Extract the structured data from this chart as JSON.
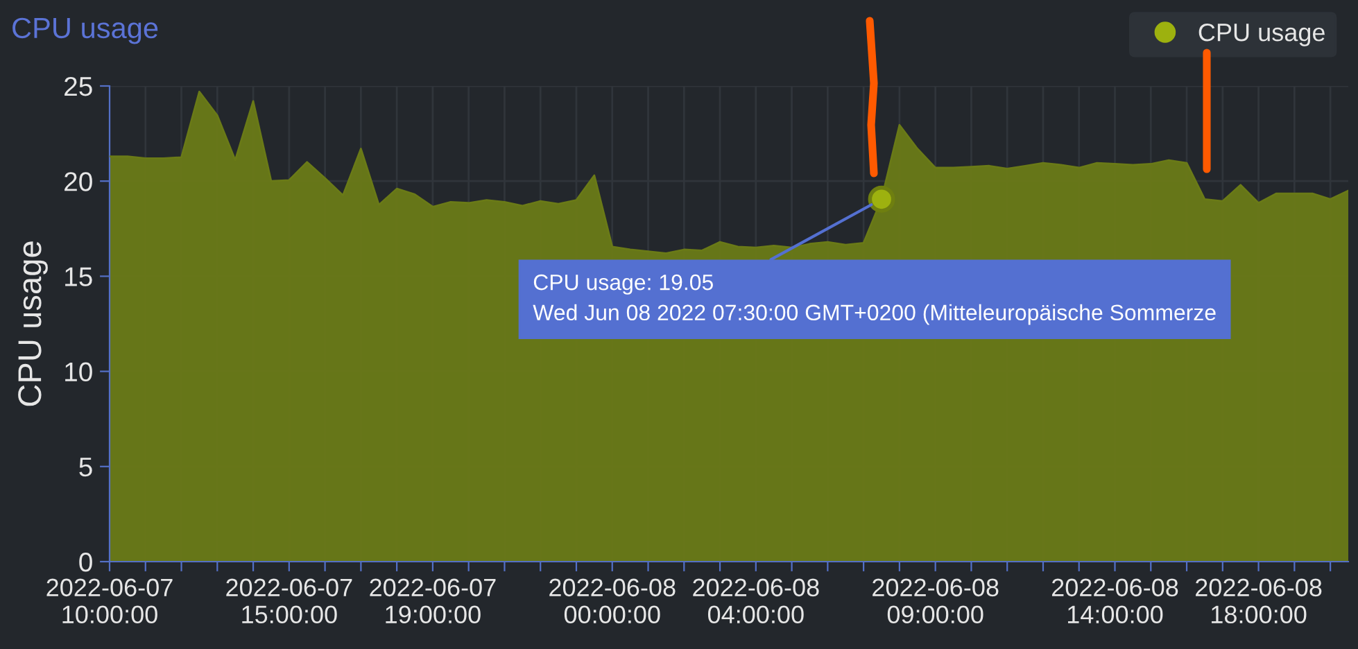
{
  "chart_data": {
    "type": "area",
    "title": "CPU usage",
    "ylabel": "CPU usage",
    "x": [
      "2022-06-07T10:00",
      "2022-06-07T10:30",
      "2022-06-07T11:00",
      "2022-06-07T11:30",
      "2022-06-07T12:00",
      "2022-06-07T12:30",
      "2022-06-07T13:00",
      "2022-06-07T13:30",
      "2022-06-07T14:00",
      "2022-06-07T14:30",
      "2022-06-07T15:00",
      "2022-06-07T15:30",
      "2022-06-07T16:00",
      "2022-06-07T16:30",
      "2022-06-07T17:00",
      "2022-06-07T17:30",
      "2022-06-07T18:00",
      "2022-06-07T18:30",
      "2022-06-07T19:00",
      "2022-06-07T19:30",
      "2022-06-07T20:00",
      "2022-06-07T20:30",
      "2022-06-07T21:00",
      "2022-06-07T21:30",
      "2022-06-07T22:00",
      "2022-06-07T22:30",
      "2022-06-07T23:00",
      "2022-06-07T23:30",
      "2022-06-08T00:00",
      "2022-06-08T00:30",
      "2022-06-08T01:00",
      "2022-06-08T01:30",
      "2022-06-08T02:00",
      "2022-06-08T02:30",
      "2022-06-08T03:00",
      "2022-06-08T03:30",
      "2022-06-08T04:00",
      "2022-06-08T04:30",
      "2022-06-08T05:00",
      "2022-06-08T05:30",
      "2022-06-08T06:00",
      "2022-06-08T06:30",
      "2022-06-08T07:00",
      "2022-06-08T07:30",
      "2022-06-08T08:00",
      "2022-06-08T08:30",
      "2022-06-08T09:00",
      "2022-06-08T09:30",
      "2022-06-08T10:00",
      "2022-06-08T10:30",
      "2022-06-08T11:00",
      "2022-06-08T11:30",
      "2022-06-08T12:00",
      "2022-06-08T12:30",
      "2022-06-08T13:00",
      "2022-06-08T13:30",
      "2022-06-08T14:00",
      "2022-06-08T14:30",
      "2022-06-08T15:00",
      "2022-06-08T15:30",
      "2022-06-08T16:00",
      "2022-06-08T16:30",
      "2022-06-08T17:00",
      "2022-06-08T17:30",
      "2022-06-08T18:00",
      "2022-06-08T18:30",
      "2022-06-08T19:00",
      "2022-06-08T19:30",
      "2022-06-08T20:00",
      "2022-06-08T20:30"
    ],
    "series": [
      {
        "name": "CPU usage",
        "color": "#6a7a17",
        "values": [
          21.3,
          21.3,
          21.2,
          21.2,
          21.25,
          24.7,
          23.45,
          21.1,
          24.2,
          20.0,
          20.05,
          21.0,
          20.15,
          19.25,
          21.7,
          18.75,
          19.6,
          19.3,
          18.65,
          18.9,
          18.85,
          19.0,
          18.9,
          18.7,
          18.95,
          18.8,
          19.0,
          20.3,
          16.55,
          16.4,
          16.3,
          16.2,
          16.4,
          16.35,
          16.8,
          16.55,
          16.5,
          16.6,
          16.5,
          16.7,
          16.8,
          16.65,
          16.75,
          19.05,
          22.95,
          21.7,
          20.7,
          20.7,
          20.75,
          20.8,
          20.65,
          20.8,
          20.95,
          20.85,
          20.7,
          20.95,
          20.9,
          20.85,
          20.9,
          21.1,
          20.95,
          19.05,
          18.95,
          19.8,
          18.85,
          19.35,
          19.35,
          19.35,
          19.05,
          19.5
        ]
      }
    ],
    "xlim": [
      "2022-06-07T10:00",
      "2022-06-08T20:30"
    ],
    "xticks": [
      {
        "value": "2022-06-07T10:00",
        "label": "2022-06-07\n10:00:00"
      },
      {
        "value": "2022-06-07T11:00",
        "label": null
      },
      {
        "value": "2022-06-07T12:00",
        "label": null
      },
      {
        "value": "2022-06-07T13:00",
        "label": null
      },
      {
        "value": "2022-06-07T14:00",
        "label": null
      },
      {
        "value": "2022-06-07T15:00",
        "label": "2022-06-07\n15:00:00"
      },
      {
        "value": "2022-06-07T16:00",
        "label": null
      },
      {
        "value": "2022-06-07T17:00",
        "label": null
      },
      {
        "value": "2022-06-07T18:00",
        "label": null
      },
      {
        "value": "2022-06-07T19:00",
        "label": "2022-06-07\n19:00:00"
      },
      {
        "value": "2022-06-07T20:00",
        "label": null
      },
      {
        "value": "2022-06-07T21:00",
        "label": null
      },
      {
        "value": "2022-06-07T22:00",
        "label": null
      },
      {
        "value": "2022-06-07T23:00",
        "label": null
      },
      {
        "value": "2022-06-08T00:00",
        "label": "2022-06-08\n00:00:00"
      },
      {
        "value": "2022-06-08T01:00",
        "label": null
      },
      {
        "value": "2022-06-08T02:00",
        "label": null
      },
      {
        "value": "2022-06-08T03:00",
        "label": null
      },
      {
        "value": "2022-06-08T04:00",
        "label": "2022-06-08\n04:00:00"
      },
      {
        "value": "2022-06-08T05:00",
        "label": null
      },
      {
        "value": "2022-06-08T06:00",
        "label": null
      },
      {
        "value": "2022-06-08T07:00",
        "label": null
      },
      {
        "value": "2022-06-08T08:00",
        "label": null
      },
      {
        "value": "2022-06-08T09:00",
        "label": "2022-06-08\n09:00:00"
      },
      {
        "value": "2022-06-08T10:00",
        "label": null
      },
      {
        "value": "2022-06-08T11:00",
        "label": null
      },
      {
        "value": "2022-06-08T12:00",
        "label": null
      },
      {
        "value": "2022-06-08T13:00",
        "label": null
      },
      {
        "value": "2022-06-08T14:00",
        "label": "2022-06-08\n14:00:00"
      },
      {
        "value": "2022-06-08T15:00",
        "label": null
      },
      {
        "value": "2022-06-08T16:00",
        "label": null
      },
      {
        "value": "2022-06-08T17:00",
        "label": null
      },
      {
        "value": "2022-06-08T18:00",
        "label": "2022-06-08\n18:00:00"
      },
      {
        "value": "2022-06-08T19:00",
        "label": null
      },
      {
        "value": "2022-06-08T20:00",
        "label": null
      }
    ],
    "ylim": [
      0,
      25
    ],
    "yticks": [
      0,
      5,
      10,
      15,
      20,
      25
    ],
    "grid": true,
    "legend": "top right",
    "marker": "none",
    "annotations": [
      {
        "text": "CPU usage: 19.05\nWed Jun 08 2022 07:30:00 GMT+0200 (Mitteleuropäische Sommerze",
        "x": "2022-06-08T07:30",
        "y": 19.05
      }
    ]
  }
}
